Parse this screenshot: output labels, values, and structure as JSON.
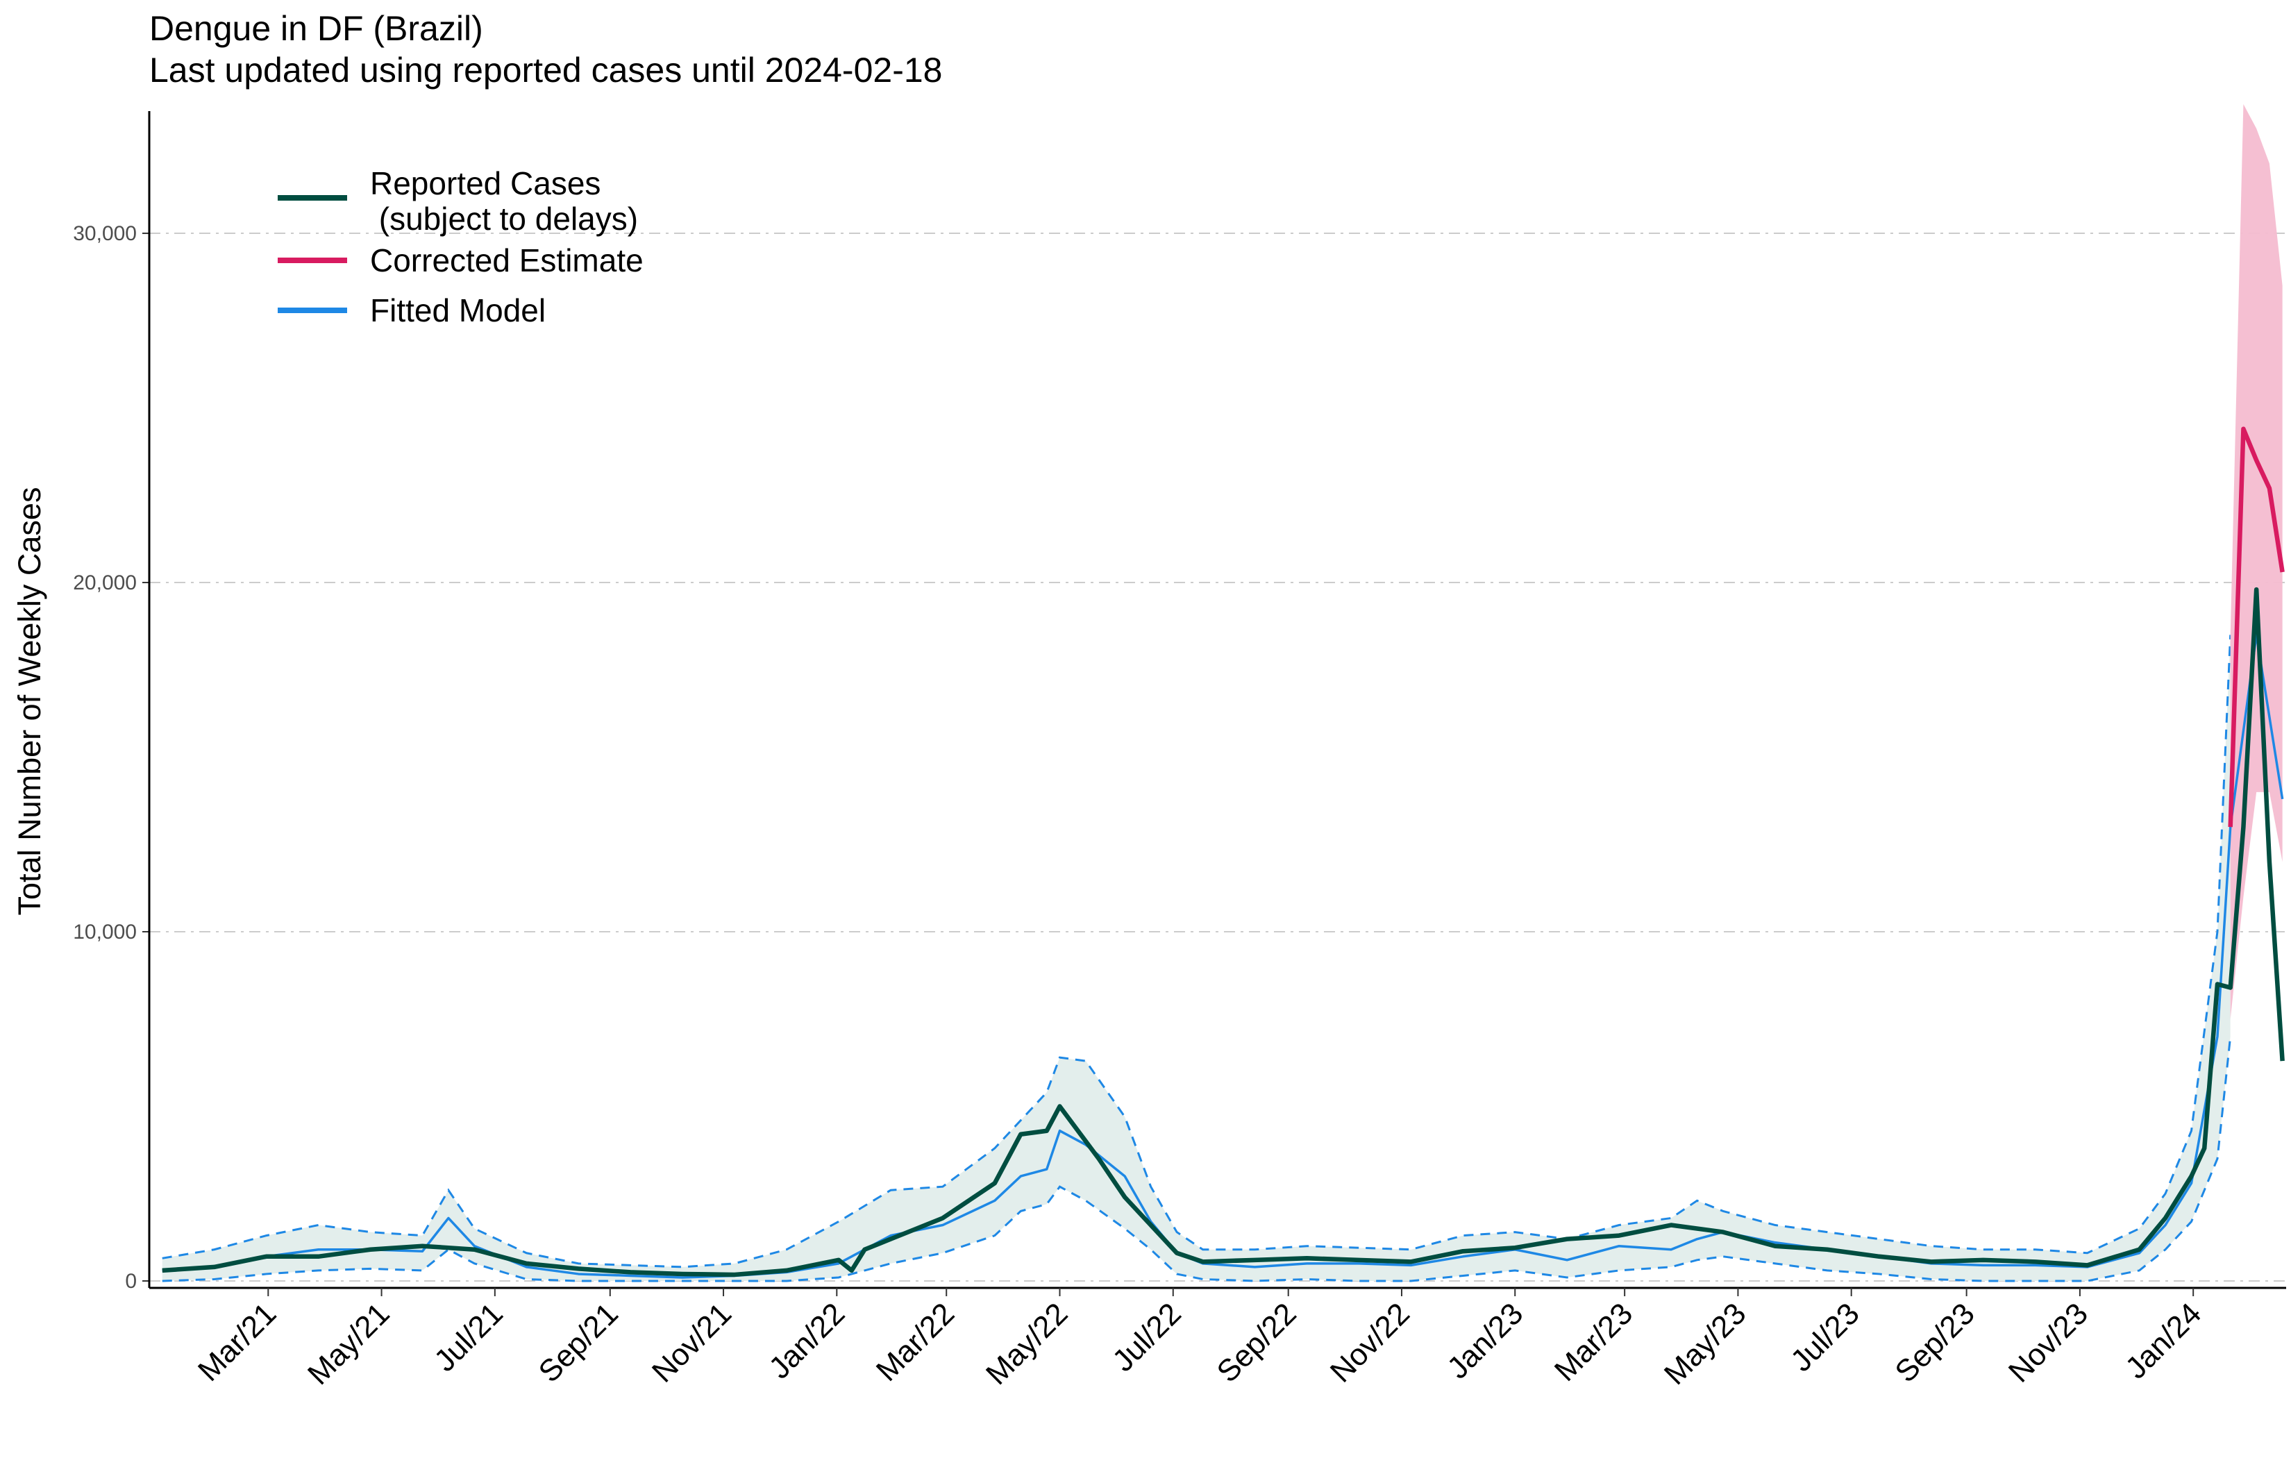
{
  "chart_data": {
    "type": "line",
    "title": "Dengue in DF (Brazil)",
    "subtitle": "Last updated using reported cases until 2024-02-18",
    "ylabel": "Total Number of Weekly Cases",
    "xlabel": "",
    "ylim": [
      0,
      33500
    ],
    "y_ticks": [
      0,
      10000,
      20000,
      30000
    ],
    "y_tick_labels": [
      "0",
      "10,000",
      "20,000",
      "30,000"
    ],
    "x_ticks": [
      "2021-03-01",
      "2021-05-01",
      "2021-07-01",
      "2021-09-01",
      "2021-11-01",
      "2022-01-01",
      "2022-03-01",
      "2022-05-01",
      "2022-07-01",
      "2022-09-01",
      "2022-11-01",
      "2023-01-01",
      "2023-03-01",
      "2023-05-01",
      "2023-07-01",
      "2023-09-01",
      "2023-11-01",
      "2024-01-01"
    ],
    "x_tick_labels": [
      "Mar/21",
      "May/21",
      "Jul/21",
      "Sep/21",
      "Nov/21",
      "Jan/22",
      "Mar/22",
      "May/22",
      "Jul/22",
      "Sep/22",
      "Nov/22",
      "Jan/23",
      "Mar/23",
      "May/23",
      "Jul/23",
      "Sep/23",
      "Nov/23",
      "Jan/24"
    ],
    "grid": "horizontal dashed",
    "legend_position": "top-left",
    "colors": {
      "reported": "#004d40",
      "corrected": "#d81b60",
      "corrected_band": "#f4bcd0",
      "fitted": "#1e88e5",
      "fitted_band": "#e3eeec",
      "grid": "#cccccc",
      "axis": "#000000"
    },
    "series": [
      {
        "name": "Reported Cases\n (subject to delays)",
        "x": [
          "2021-01-03",
          "2021-01-31",
          "2021-02-28",
          "2021-03-28",
          "2021-04-25",
          "2021-05-23",
          "2021-06-20",
          "2021-07-18",
          "2021-08-15",
          "2021-09-12",
          "2021-10-10",
          "2021-11-07",
          "2021-12-05",
          "2022-01-02",
          "2022-01-09",
          "2022-01-16",
          "2022-01-30",
          "2022-02-27",
          "2022-03-27",
          "2022-04-10",
          "2022-04-24",
          "2022-05-01",
          "2022-05-08",
          "2022-05-22",
          "2022-06-05",
          "2022-06-19",
          "2022-07-03",
          "2022-07-17",
          "2022-08-14",
          "2022-09-11",
          "2022-10-09",
          "2022-11-06",
          "2022-12-04",
          "2023-01-01",
          "2023-01-29",
          "2023-02-26",
          "2023-03-26",
          "2023-04-23",
          "2023-05-21",
          "2023-06-18",
          "2023-07-16",
          "2023-08-13",
          "2023-09-10",
          "2023-10-08",
          "2023-11-05",
          "2023-12-03",
          "2023-12-17",
          "2023-12-31",
          "2024-01-07",
          "2024-01-14",
          "2024-01-21",
          "2024-01-28",
          "2024-02-04",
          "2024-02-11",
          "2024-02-18"
        ],
        "y": [
          300,
          400,
          700,
          700,
          900,
          1000,
          900,
          500,
          350,
          250,
          200,
          180,
          300,
          600,
          300,
          900,
          1200,
          1800,
          2800,
          4200,
          4300,
          5000,
          4500,
          3500,
          2400,
          1600,
          800,
          550,
          600,
          650,
          600,
          550,
          850,
          950,
          1200,
          1300,
          1600,
          1400,
          1000,
          900,
          700,
          550,
          600,
          550,
          450,
          900,
          1800,
          3000,
          3800,
          8500,
          8400,
          13000,
          19800,
          12000,
          6300
        ]
      },
      {
        "name": "Corrected Estimate",
        "x": [
          "2024-01-28",
          "2024-02-04",
          "2024-02-11",
          "2024-02-18"
        ],
        "y": [
          24400,
          23500,
          22700,
          20300
        ]
      },
      {
        "name": "Fitted Model",
        "x": [
          "2021-01-03",
          "2021-01-31",
          "2021-02-28",
          "2021-03-28",
          "2021-04-25",
          "2021-05-23",
          "2021-06-06",
          "2021-06-20",
          "2021-07-18",
          "2021-08-15",
          "2021-09-12",
          "2021-10-10",
          "2021-11-07",
          "2021-12-05",
          "2022-01-02",
          "2022-01-30",
          "2022-02-27",
          "2022-03-27",
          "2022-04-10",
          "2022-04-24",
          "2022-05-01",
          "2022-05-15",
          "2022-06-05",
          "2022-06-19",
          "2022-07-03",
          "2022-07-17",
          "2022-08-14",
          "2022-09-11",
          "2022-10-09",
          "2022-11-06",
          "2022-12-04",
          "2023-01-01",
          "2023-01-29",
          "2023-02-26",
          "2023-03-26",
          "2023-04-09",
          "2023-04-23",
          "2023-05-21",
          "2023-06-18",
          "2023-07-16",
          "2023-08-13",
          "2023-09-10",
          "2023-10-08",
          "2023-11-05",
          "2023-12-03",
          "2023-12-17",
          "2023-12-31",
          "2024-01-14",
          "2024-01-21",
          "2024-02-04",
          "2024-02-18"
        ],
        "y": [
          300,
          400,
          700,
          900,
          900,
          850,
          1800,
          1000,
          400,
          200,
          150,
          100,
          150,
          250,
          500,
          1300,
          1600,
          2300,
          3000,
          3200,
          4300,
          3900,
          3000,
          1700,
          800,
          500,
          400,
          500,
          500,
          450,
          700,
          900,
          600,
          1000,
          900,
          1200,
          1400,
          1100,
          900,
          700,
          500,
          450,
          450,
          400,
          800,
          1600,
          2800,
          7000,
          13000,
          18500,
          13800
        ]
      }
    ],
    "fitted_band": {
      "x": [
        "2021-01-03",
        "2021-01-31",
        "2021-02-28",
        "2021-03-28",
        "2021-04-25",
        "2021-05-23",
        "2021-06-06",
        "2021-06-20",
        "2021-07-18",
        "2021-08-15",
        "2021-09-12",
        "2021-10-10",
        "2021-11-07",
        "2021-12-05",
        "2022-01-02",
        "2022-01-30",
        "2022-02-27",
        "2022-03-27",
        "2022-04-10",
        "2022-04-24",
        "2022-05-01",
        "2022-05-15",
        "2022-06-05",
        "2022-06-19",
        "2022-07-03",
        "2022-07-17",
        "2022-08-14",
        "2022-09-11",
        "2022-10-09",
        "2022-11-06",
        "2022-12-04",
        "2023-01-01",
        "2023-01-29",
        "2023-02-26",
        "2023-03-26",
        "2023-04-09",
        "2023-04-23",
        "2023-05-21",
        "2023-06-18",
        "2023-07-16",
        "2023-08-13",
        "2023-09-10",
        "2023-10-08",
        "2023-11-05",
        "2023-12-03",
        "2023-12-17",
        "2023-12-31",
        "2024-01-14",
        "2024-01-21"
      ],
      "low": [
        0,
        50,
        200,
        300,
        350,
        300,
        900,
        500,
        50,
        0,
        0,
        0,
        0,
        0,
        100,
        500,
        800,
        1300,
        2000,
        2200,
        2700,
        2300,
        1500,
        900,
        200,
        50,
        0,
        50,
        0,
        0,
        150,
        300,
        100,
        300,
        400,
        600,
        700,
        500,
        300,
        200,
        50,
        0,
        0,
        0,
        300,
        900,
        1700,
        3500,
        7000
      ],
      "high": [
        650,
        900,
        1300,
        1600,
        1400,
        1300,
        2600,
        1500,
        800,
        500,
        450,
        400,
        500,
        900,
        1700,
        2600,
        2700,
        3800,
        4600,
        5400,
        6400,
        6300,
        4700,
        2700,
        1400,
        900,
        900,
        1000,
        950,
        900,
        1300,
        1400,
        1200,
        1600,
        1800,
        2300,
        2000,
        1600,
        1400,
        1200,
        1000,
        900,
        900,
        800,
        1500,
        2500,
        4300,
        10000,
        18500
      ]
    },
    "corrected_band": {
      "x": [
        "2024-01-21",
        "2024-01-28",
        "2024-02-04",
        "2024-02-11",
        "2024-02-18"
      ],
      "low": [
        7500,
        11000,
        14000,
        14000,
        12000
      ],
      "high": [
        18500,
        33700,
        33000,
        32000,
        28500
      ]
    }
  },
  "legend": {
    "items": [
      {
        "label_line1": "Reported Cases",
        "label_line2": " (subject to delays)",
        "color": "#004d40"
      },
      {
        "label_line1": "Corrected Estimate",
        "label_line2": "",
        "color": "#d81b60"
      },
      {
        "label_line1": "Fitted Model",
        "label_line2": "",
        "color": "#1e88e5"
      }
    ]
  }
}
